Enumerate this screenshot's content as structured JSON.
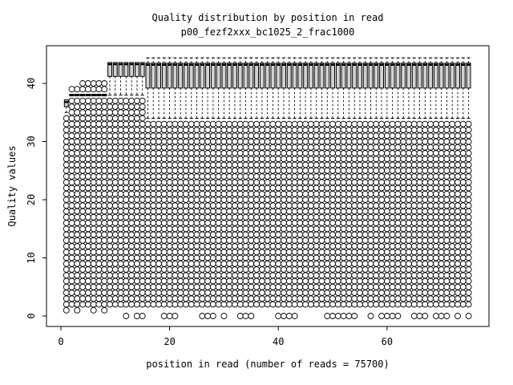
{
  "chart_data": {
    "type": "boxplot",
    "title": "Quality distribution by position in read",
    "subtitle": "p00_fezf2xxx_bc1025_2_frac1000",
    "xlabel": "position in read (number of reads = 75700)",
    "ylabel": "Quality values",
    "x_axis": {
      "ticks": [
        0,
        20,
        40,
        60
      ],
      "range": [
        -2.65,
        78.75
      ]
    },
    "y_axis": {
      "ticks": [
        0,
        10,
        20,
        30,
        40
      ],
      "range": [
        -1.79,
        46.48
      ]
    },
    "n_positions": 75,
    "legend": "none",
    "grid": false,
    "style": {
      "box_fill": "#d2d2d2",
      "box_stroke": "#000000",
      "outlier_stroke": "#000000",
      "outlier_fill": "#ffffff",
      "outlier_radius": 3.5,
      "box_width": 4.9
    },
    "groups": [
      {
        "from": 1,
        "to": 1,
        "box": [
          36.0,
          37.2
        ],
        "median": 36.8,
        "whisker_low": 35,
        "whisker_high": null,
        "outliers_low": [
          2,
          34
        ]
      },
      {
        "from": 2,
        "to": 8,
        "box": null,
        "median": 38.0,
        "whisker_low": null,
        "whisker_high": null,
        "outliers_low": [
          2,
          37
        ]
      },
      {
        "from": 9,
        "to": 15,
        "box": [
          41.2,
          43.6
        ],
        "median": 43.3,
        "whisker_low": 38,
        "whisker_high": null,
        "outliers_low": [
          2,
          37
        ]
      },
      {
        "from": 16,
        "to": 75,
        "box": [
          39.2,
          43.5
        ],
        "median": 43.2,
        "whisker_low": 34,
        "whisker_high": 44.4,
        "outliers_low": [
          2,
          33
        ]
      }
    ],
    "extra_outlier_rows": [
      {
        "quality": 40,
        "positions": [
          4,
          5,
          6,
          7,
          8
        ]
      },
      {
        "quality": 39,
        "positions": [
          2,
          3,
          4,
          5,
          6,
          7,
          8
        ]
      },
      {
        "quality": 1,
        "positions": [
          1,
          3,
          6,
          8
        ]
      },
      {
        "quality": 0,
        "positions": [
          12,
          14,
          15,
          19,
          20,
          21,
          26,
          27,
          28,
          30,
          33,
          34,
          35,
          40,
          41,
          42,
          43,
          49,
          50,
          51,
          52,
          53,
          54,
          57,
          59,
          60,
          61,
          62,
          65,
          66,
          67,
          69,
          70,
          71,
          73,
          75
        ]
      }
    ]
  }
}
